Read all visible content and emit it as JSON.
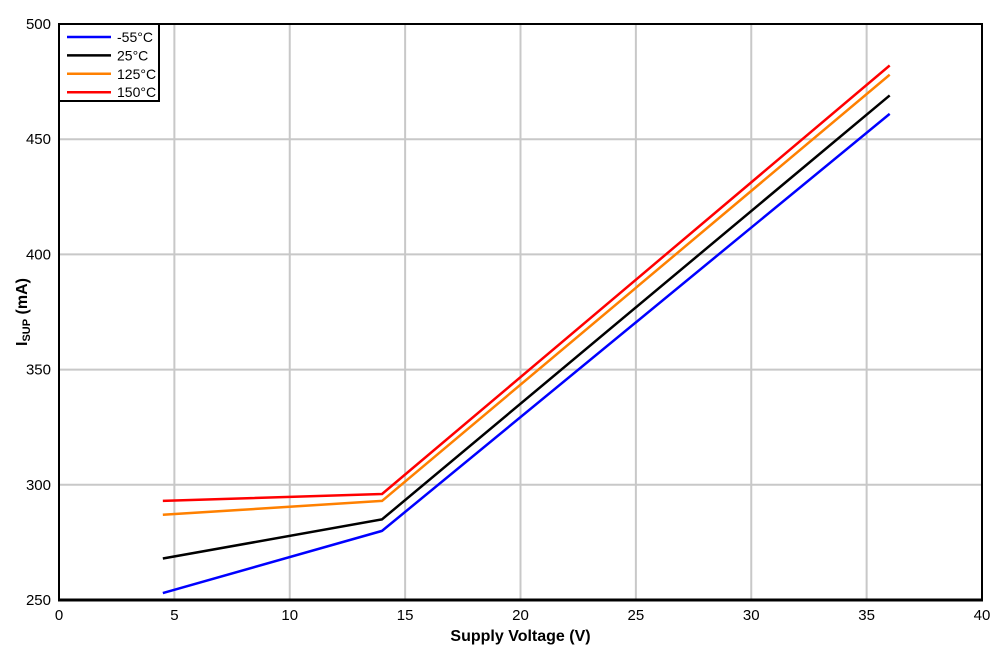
{
  "chart_data": {
    "type": "line",
    "title": "",
    "xlabel": "Supply Voltage (V)",
    "ylabel_main": "I",
    "ylabel_sub": "SUP",
    "ylabel_unit": " (mA)",
    "xlim": [
      0,
      40
    ],
    "ylim": [
      250,
      500
    ],
    "xticks": [
      0,
      5,
      10,
      15,
      20,
      25,
      30,
      35,
      40
    ],
    "yticks": [
      250,
      300,
      350,
      400,
      450,
      500
    ],
    "grid": true,
    "grid_color": "#c8c8c8",
    "axis_color": "#000000",
    "background_color": "#ffffff",
    "legend_position": "top-left",
    "series": [
      {
        "name": "-55°C",
        "color": "#0000ff",
        "points": [
          [
            4.5,
            253
          ],
          [
            14,
            280
          ],
          [
            36,
            461
          ]
        ]
      },
      {
        "name": "25°C",
        "color": "#000000",
        "points": [
          [
            4.5,
            268
          ],
          [
            14,
            285
          ],
          [
            36,
            469
          ]
        ]
      },
      {
        "name": "125°C",
        "color": "#ff8000",
        "points": [
          [
            4.5,
            287
          ],
          [
            14,
            293
          ],
          [
            36,
            478
          ]
        ]
      },
      {
        "name": "150°C",
        "color": "#ff0000",
        "points": [
          [
            4.5,
            293
          ],
          [
            14,
            296
          ],
          [
            36,
            482
          ]
        ]
      }
    ]
  }
}
